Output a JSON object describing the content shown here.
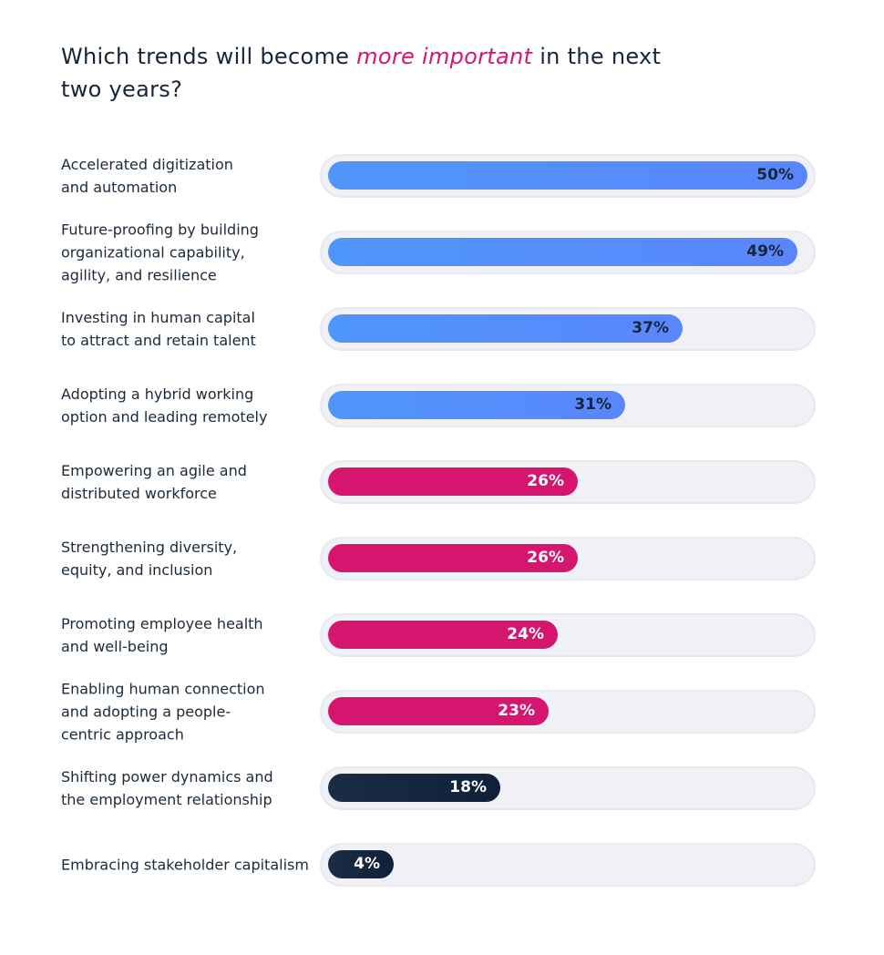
{
  "title": {
    "before": "Which trends will become ",
    "highlight": "more important",
    "after": " in the next two years?"
  },
  "colors": {
    "highlight": "#d6156f",
    "blue_start": "#4f96fb",
    "blue_end": "#5a86fb",
    "magenta": "#d6156f",
    "navy_start": "#1a2d44",
    "navy_end": "#10203a",
    "track": "#f0f1f6"
  },
  "chart_data": {
    "type": "bar",
    "orientation": "horizontal",
    "title": "Which trends will become more important in the next two years?",
    "value_suffix": "%",
    "xlim": [
      0,
      50
    ],
    "categories": [
      "Accelerated digitization\nand automation",
      "Future-proofing by building\norganizational capability,\nagility, and resilience",
      "Investing in human capital\nto attract and retain talent",
      "Adopting a hybrid working\noption and leading remotely",
      "Empowering an agile and\ndistributed workforce",
      "Strengthening diversity,\nequity, and inclusion",
      "Promoting employee health\nand well-being",
      "Enabling human connection\nand adopting a people-\ncentric approach",
      "Shifting power dynamics and\nthe employment relationship",
      "Embracing stakeholder capitalism"
    ],
    "values": [
      50,
      49,
      37,
      31,
      26,
      26,
      24,
      23,
      18,
      4
    ],
    "data_labels": [
      "50%",
      "49%",
      "37%",
      "31%",
      "26%",
      "26%",
      "24%",
      "23%",
      "18%",
      "4%"
    ],
    "bar_colors": [
      "blue",
      "blue",
      "blue",
      "blue",
      "magenta",
      "magenta",
      "magenta",
      "magenta",
      "navy",
      "navy"
    ]
  }
}
